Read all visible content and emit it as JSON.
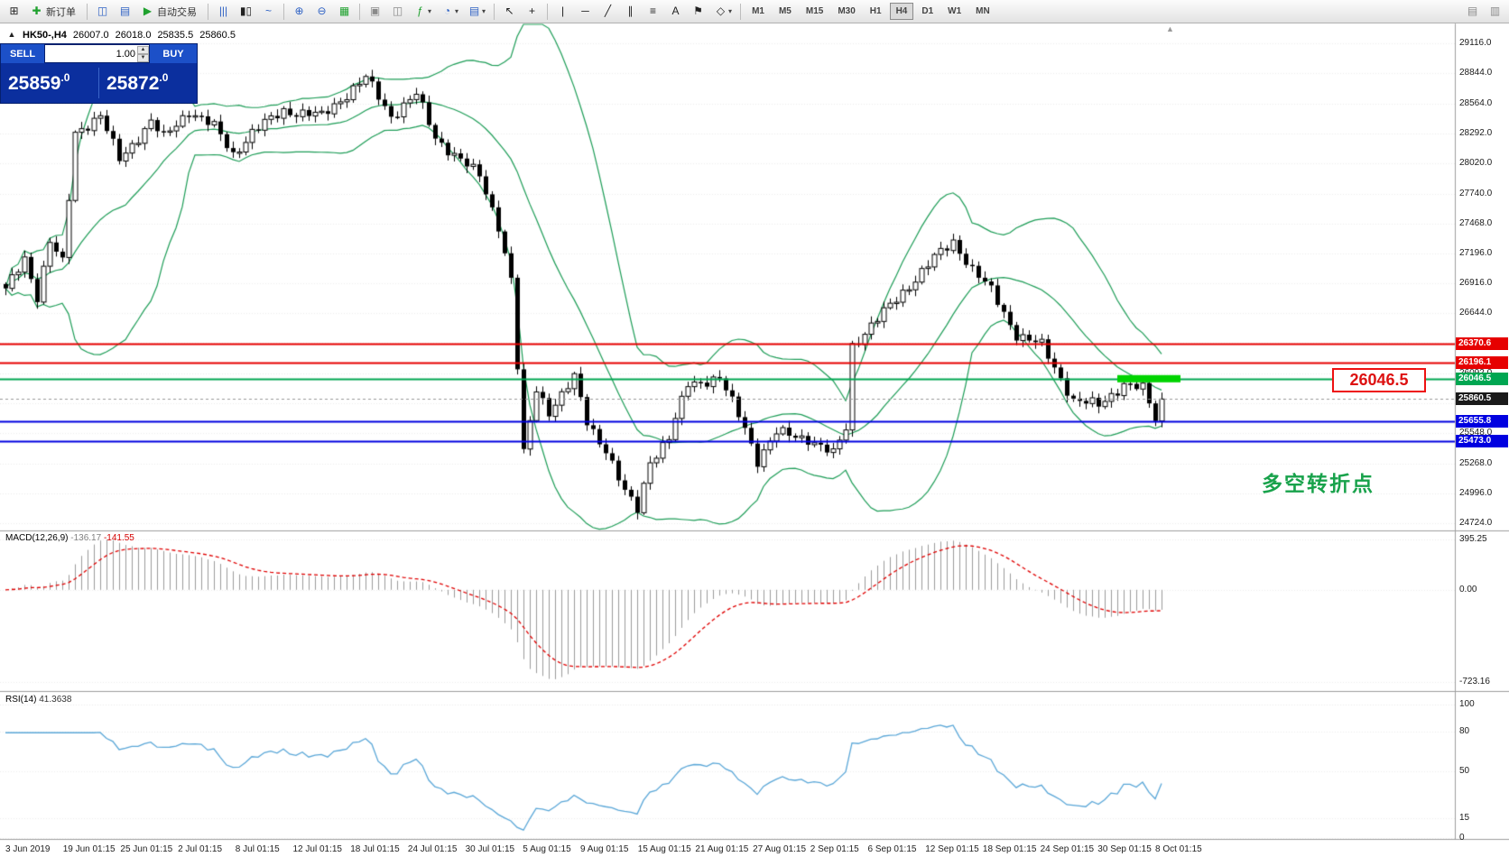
{
  "toolbar": {
    "new_order_label": "新订单",
    "autotrading_label": "自动交易",
    "timeframes": [
      "M1",
      "M5",
      "M15",
      "M30",
      "H1",
      "H4",
      "D1",
      "W1",
      "MN"
    ],
    "active_timeframe": "H4"
  },
  "icons": {
    "new_chart": "⊞",
    "new_order": "✚",
    "chart_window": "◫",
    "profiles": "▤",
    "autotrading_play": "▶",
    "bar_chart": "|||",
    "candle_chart": "▮▯",
    "line_chart": "~",
    "zoom_in": "⊕",
    "zoom_out": "⊖",
    "grid": "▦",
    "cascade": "▣",
    "tile": "◫",
    "indicators": "ƒ",
    "clock": "◔",
    "template": "▤",
    "dropdown": "▾",
    "cursor": "↖",
    "crosshair": "+",
    "vline": "|",
    "hline": "─",
    "trendline": "╱",
    "channel": "∥",
    "fibo": "≡",
    "text": "A",
    "label_flag": "⚑",
    "shapes": "◇",
    "printer": "▤",
    "preview": "▥",
    "chart_shift": "▲",
    "widget_toggle": "▲",
    "lot_up": "▲",
    "lot_down": "▼"
  },
  "chart_header": {
    "symbol_period": "HK50-,H4",
    "open": "26007.0",
    "high": "26018.0",
    "low": "25835.5",
    "close": "25860.5"
  },
  "one_click": {
    "sell_label": "SELL",
    "buy_label": "BUY",
    "lot_value": "1.00",
    "sell_price_main": "25859",
    "sell_price_frac": ".0",
    "buy_price_main": "25872",
    "buy_price_frac": ".0"
  },
  "price_scale": {
    "labels": [
      "29116.0",
      "28844.0",
      "28564.0",
      "28292.0",
      "28020.0",
      "27740.0",
      "27468.0",
      "27196.0",
      "26916.0",
      "26644.0",
      "26372.0",
      "26092.0",
      "25820.0",
      "25548.0",
      "25268.0",
      "24996.0",
      "24724.0"
    ]
  },
  "levels": [
    {
      "label": "26370.6",
      "price": 26370.6,
      "type": "resistance-upper",
      "color": "#e60000"
    },
    {
      "label": "26196.1",
      "price": 26196.1,
      "type": "resistance-lower",
      "color": "#e60000"
    },
    {
      "label": "26046.5",
      "price": 26046.5,
      "type": "key-level",
      "color": "#00a651"
    },
    {
      "label": "25860.5",
      "price": 25860.5,
      "type": "current-price",
      "color": "#1a1a1a"
    },
    {
      "label": "25655.8",
      "price": 25655.8,
      "type": "support-upper",
      "color": "#0000e0"
    },
    {
      "label": "25473.0",
      "price": 25473.0,
      "type": "support-lower",
      "color": "#0000e0"
    }
  ],
  "macd": {
    "name": "MACD(12,26,9)",
    "main_value": "-136.17",
    "signal_value": "-141.55",
    "scale": [
      {
        "label": "395.25",
        "value": 395.25
      },
      {
        "label": "0.00",
        "value": 0
      },
      {
        "label": "-723.16",
        "value": -723.16
      }
    ]
  },
  "rsi": {
    "name": "RSI(14)",
    "value": "41.3638",
    "scale": [
      {
        "label": "100",
        "value": 100
      },
      {
        "label": "80",
        "value": 80
      },
      {
        "label": "50",
        "value": 50
      },
      {
        "label": "15",
        "value": 15
      },
      {
        "label": "0",
        "value": 0
      }
    ]
  },
  "date_axis": [
    "3 Jun 2019",
    "19 Jun 01:15",
    "25 Jun 01:15",
    "2 Jul 01:15",
    "8 Jul 01:15",
    "12 Jul 01:15",
    "18 Jul 01:15",
    "24 Jul 01:15",
    "30 Jul 01:15",
    "5 Aug 01:15",
    "9 Aug 01:15",
    "15 Aug 01:15",
    "21 Aug 01:15",
    "27 Aug 01:15",
    "2 Sep 01:15",
    "6 Sep 01:15",
    "12 Sep 01:15",
    "18 Sep 01:15",
    "24 Sep 01:15",
    "30 Sep 01:15",
    "8 Oct 01:15"
  ],
  "annotations": {
    "turning_point": "多空转折点",
    "level_callout": "26046.5"
  },
  "chart_data": {
    "type": "candlestick",
    "symbol": "HK50",
    "period": "H4",
    "candle_count": 184,
    "last_close": 25860.5,
    "price_axis": {
      "top": 29116.0,
      "bottom": 24724.0
    },
    "waypoints": [
      [
        0,
        26850
      ],
      [
        3,
        27150
      ],
      [
        5,
        26800
      ],
      [
        7,
        27300
      ],
      [
        9,
        27100
      ],
      [
        11,
        28300
      ],
      [
        15,
        28450
      ],
      [
        18,
        28050
      ],
      [
        23,
        28400
      ],
      [
        25,
        28250
      ],
      [
        29,
        28500
      ],
      [
        33,
        28350
      ],
      [
        36,
        28100
      ],
      [
        39,
        28300
      ],
      [
        44,
        28500
      ],
      [
        50,
        28450
      ],
      [
        57,
        28800
      ],
      [
        61,
        28450
      ],
      [
        65,
        28650
      ],
      [
        68,
        28250
      ],
      [
        71,
        28100
      ],
      [
        75,
        27900
      ],
      [
        78,
        27450
      ],
      [
        80,
        26950
      ],
      [
        82,
        25350
      ],
      [
        84,
        25950
      ],
      [
        86,
        25750
      ],
      [
        90,
        26050
      ],
      [
        92,
        25650
      ],
      [
        95,
        25400
      ],
      [
        98,
        25000
      ],
      [
        100,
        24850
      ],
      [
        102,
        25300
      ],
      [
        105,
        25500
      ],
      [
        108,
        26000
      ],
      [
        113,
        26050
      ],
      [
        117,
        25600
      ],
      [
        119,
        25300
      ],
      [
        122,
        25550
      ],
      [
        127,
        25500
      ],
      [
        131,
        25350
      ],
      [
        133,
        25600
      ],
      [
        134,
        26350
      ],
      [
        139,
        26650
      ],
      [
        143,
        26900
      ],
      [
        147,
        27150
      ],
      [
        150,
        27300
      ],
      [
        153,
        27050
      ],
      [
        156,
        26850
      ],
      [
        160,
        26450
      ],
      [
        164,
        26350
      ],
      [
        167,
        26050
      ],
      [
        169,
        25850
      ],
      [
        173,
        25800
      ],
      [
        177,
        26000
      ],
      [
        180,
        25950
      ],
      [
        182,
        25680
      ],
      [
        183,
        25860.5
      ]
    ],
    "highlight": {
      "price": 26046.5,
      "from": 176,
      "to": 186,
      "color": "#00d400"
    },
    "indicators": {
      "bollinger_period": 20,
      "bollinger_deviation": 2,
      "macd": [
        12,
        26,
        9
      ],
      "rsi_period": 14
    },
    "colors": {
      "bull": "#ffffff",
      "bear": "#000000",
      "bollinger": "#1d9d57",
      "macd_histogram": "#9b9b9b",
      "macd_signal": "#e00000",
      "rsi_line": "#5aa7d8"
    }
  }
}
